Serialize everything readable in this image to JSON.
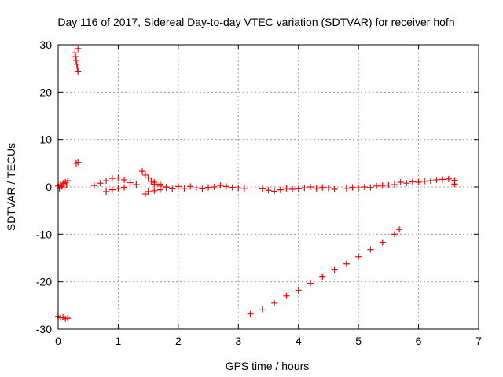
{
  "chart_data": {
    "type": "scatter",
    "title": "Day 116 of 2017, Sidereal Day-to-day VTEC variation (SDTVAR) for receiver hofn",
    "xlabel": "GPS time / hours",
    "ylabel": "SDTVAR / TECUs",
    "xlim": [
      0,
      7
    ],
    "ylim": [
      -30,
      30
    ],
    "x_ticks": [
      "0",
      "1",
      "2",
      "3",
      "4",
      "5",
      "6",
      "7"
    ],
    "y_ticks": [
      "30",
      "20",
      "10",
      "0",
      "-10",
      "-20",
      "-30"
    ],
    "x_tick_values": [
      0,
      1,
      2,
      3,
      4,
      5,
      6,
      7
    ],
    "y_tick_values": [
      30,
      20,
      10,
      0,
      -10,
      -20,
      -30
    ],
    "grid": true,
    "legend": "none",
    "marker": "+",
    "color": "#ff0000",
    "series": [
      {
        "points": [
          [
            0.0,
            0.2
          ],
          [
            0.02,
            -0.3
          ],
          [
            0.04,
            0.5
          ],
          [
            0.06,
            0.1
          ],
          [
            0.08,
            0.8
          ],
          [
            0.1,
            -0.2
          ],
          [
            0.12,
            1.0
          ],
          [
            0.14,
            0.4
          ],
          [
            0.16,
            1.3
          ],
          [
            0.0,
            -27.3
          ],
          [
            0.04,
            -27.6
          ],
          [
            0.08,
            -27.5
          ],
          [
            0.12,
            -27.8
          ],
          [
            0.16,
            -27.7
          ],
          [
            0.28,
            28.3
          ],
          [
            0.29,
            27.5
          ],
          [
            0.3,
            26.7
          ],
          [
            0.31,
            25.9
          ],
          [
            0.32,
            25.1
          ],
          [
            0.33,
            24.3
          ],
          [
            0.33,
            29.2
          ],
          [
            0.3,
            5.0
          ],
          [
            0.33,
            5.2
          ],
          [
            0.6,
            0.3
          ],
          [
            0.7,
            0.8
          ],
          [
            0.8,
            1.3
          ],
          [
            0.9,
            1.8
          ],
          [
            1.0,
            1.9
          ],
          [
            1.1,
            1.5
          ],
          [
            1.2,
            0.9
          ],
          [
            1.3,
            0.5
          ],
          [
            0.8,
            -1.0
          ],
          [
            0.9,
            -0.6
          ],
          [
            1.0,
            -0.3
          ],
          [
            1.1,
            -0.1
          ],
          [
            1.4,
            3.3
          ],
          [
            1.45,
            2.5
          ],
          [
            1.5,
            1.9
          ],
          [
            1.55,
            1.2
          ],
          [
            1.6,
            0.6
          ],
          [
            1.7,
            0.2
          ],
          [
            1.8,
            -0.2
          ],
          [
            1.9,
            -0.4
          ],
          [
            1.45,
            -1.5
          ],
          [
            1.5,
            -1.0
          ],
          [
            1.6,
            -0.8
          ],
          [
            1.7,
            -0.6
          ],
          [
            1.8,
            0.0
          ],
          [
            1.6,
            1.0
          ],
          [
            1.7,
            0.6
          ],
          [
            2.0,
            0.1
          ],
          [
            2.1,
            -0.3
          ],
          [
            2.2,
            0.1
          ],
          [
            2.3,
            -0.2
          ],
          [
            2.4,
            -0.4
          ],
          [
            2.5,
            -0.1
          ],
          [
            2.6,
            0.0
          ],
          [
            2.7,
            0.3
          ],
          [
            2.8,
            0.1
          ],
          [
            2.9,
            -0.1
          ],
          [
            3.0,
            -0.2
          ],
          [
            3.1,
            -0.3
          ],
          [
            3.4,
            -0.4
          ],
          [
            3.5,
            -0.7
          ],
          [
            3.6,
            -0.9
          ],
          [
            3.7,
            -0.6
          ],
          [
            3.8,
            -0.3
          ],
          [
            3.9,
            -0.5
          ],
          [
            4.0,
            -0.4
          ],
          [
            4.1,
            -0.2
          ],
          [
            4.2,
            0.0
          ],
          [
            4.3,
            -0.3
          ],
          [
            4.4,
            -0.1
          ],
          [
            4.5,
            -0.2
          ],
          [
            4.6,
            -0.5
          ],
          [
            4.8,
            -0.3
          ],
          [
            4.9,
            -0.1
          ],
          [
            5.0,
            -0.2
          ],
          [
            5.1,
            0.0
          ],
          [
            5.2,
            -0.1
          ],
          [
            5.3,
            0.2
          ],
          [
            5.4,
            0.3
          ],
          [
            5.5,
            0.4
          ],
          [
            5.6,
            0.5
          ],
          [
            5.7,
            1.0
          ],
          [
            5.8,
            0.8
          ],
          [
            5.9,
            1.1
          ],
          [
            6.0,
            1.0
          ],
          [
            6.1,
            1.2
          ],
          [
            6.2,
            1.3
          ],
          [
            6.3,
            1.5
          ],
          [
            6.4,
            1.6
          ],
          [
            6.5,
            1.7
          ],
          [
            6.6,
            1.4
          ],
          [
            6.6,
            0.6
          ],
          [
            3.2,
            -26.8
          ],
          [
            3.4,
            -25.8
          ],
          [
            3.6,
            -24.5
          ],
          [
            3.8,
            -23.0
          ],
          [
            4.0,
            -21.8
          ],
          [
            4.2,
            -20.3
          ],
          [
            4.4,
            -19.0
          ],
          [
            4.6,
            -17.5
          ],
          [
            4.8,
            -16.2
          ],
          [
            5.0,
            -14.7
          ],
          [
            5.2,
            -13.2
          ],
          [
            5.4,
            -11.7
          ],
          [
            5.6,
            -10.0
          ],
          [
            5.68,
            -9.0
          ]
        ]
      }
    ]
  }
}
